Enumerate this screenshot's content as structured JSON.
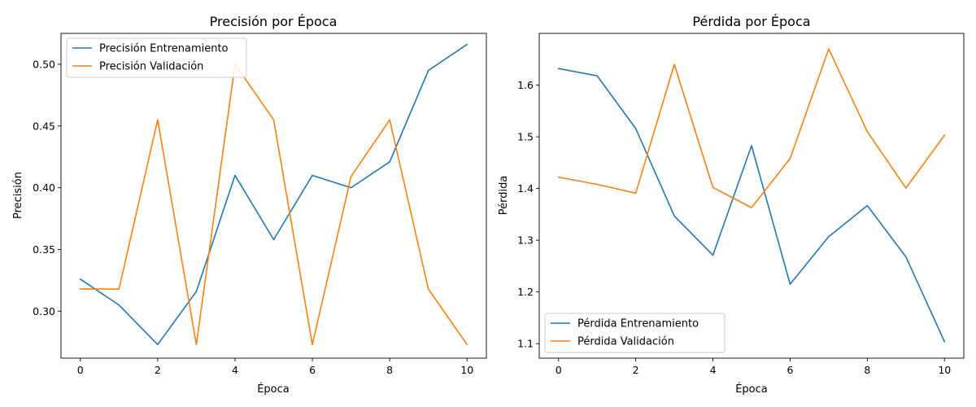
{
  "chart_data": [
    {
      "type": "line",
      "title": "Precisión por Época",
      "xlabel": "Época",
      "ylabel": "Precisión",
      "x": [
        0,
        1,
        2,
        3,
        4,
        5,
        6,
        7,
        8,
        9,
        10
      ],
      "xlim": [
        -0.5,
        10.5
      ],
      "ylim": [
        0.262,
        0.525
      ],
      "xticks": [
        0,
        2,
        4,
        6,
        8,
        10
      ],
      "yticks": [
        0.3,
        0.35,
        0.4,
        0.45,
        0.5
      ],
      "ytick_labels": [
        "0.30",
        "0.35",
        "0.40",
        "0.45",
        "0.50"
      ],
      "legend": "top-left",
      "grid": false,
      "series": [
        {
          "name": "Precisión Entrenamiento",
          "color": "#1f77b4",
          "values": [
            0.326,
            0.305,
            0.273,
            0.316,
            0.41,
            0.358,
            0.41,
            0.4,
            0.421,
            0.495,
            0.516
          ]
        },
        {
          "name": "Precisión Validación",
          "color": "#ff7f0e",
          "values": [
            0.318,
            0.318,
            0.455,
            0.273,
            0.5,
            0.455,
            0.273,
            0.409,
            0.455,
            0.318,
            0.273
          ]
        }
      ]
    },
    {
      "type": "line",
      "title": "Pérdida por Época",
      "xlabel": "Época",
      "ylabel": "Pérdida",
      "x": [
        0,
        1,
        2,
        3,
        4,
        5,
        6,
        7,
        8,
        9,
        10
      ],
      "xlim": [
        -0.5,
        10.5
      ],
      "ylim": [
        1.072,
        1.7
      ],
      "xticks": [
        0,
        2,
        4,
        6,
        8,
        10
      ],
      "yticks": [
        1.1,
        1.2,
        1.3,
        1.4,
        1.5,
        1.6
      ],
      "ytick_labels": [
        "1.1",
        "1.2",
        "1.3",
        "1.4",
        "1.5",
        "1.6"
      ],
      "legend": "bottom-left",
      "grid": false,
      "series": [
        {
          "name": "Pérdida Entrenamiento",
          "color": "#1f77b4",
          "values": [
            1.632,
            1.618,
            1.516,
            1.347,
            1.271,
            1.483,
            1.215,
            1.307,
            1.367,
            1.268,
            1.104
          ]
        },
        {
          "name": "Pérdida Validación",
          "color": "#ff7f0e",
          "values": [
            1.422,
            1.408,
            1.391,
            1.64,
            1.402,
            1.363,
            1.458,
            1.67,
            1.51,
            1.401,
            1.503
          ]
        }
      ]
    }
  ]
}
